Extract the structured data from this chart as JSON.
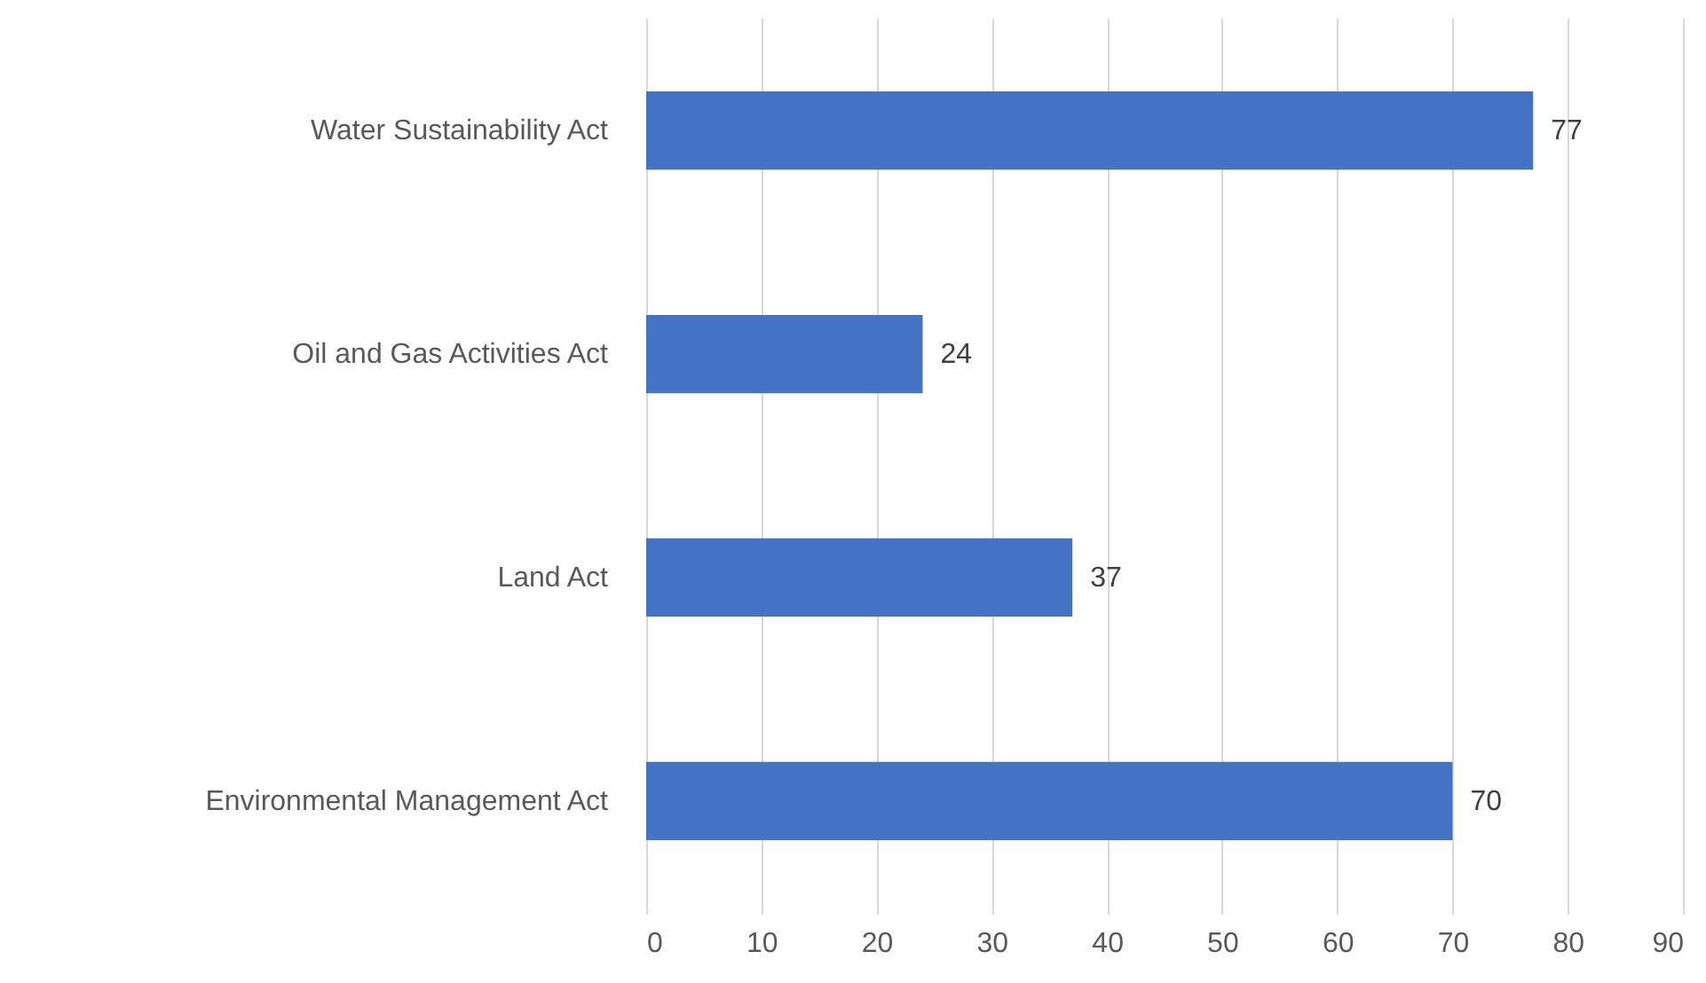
{
  "chart_data": {
    "type": "bar",
    "orientation": "horizontal",
    "categories": [
      "Water Sustainability Act",
      "Oil and Gas Activities Act",
      "Land Act",
      "Environmental Management Act"
    ],
    "values": [
      77,
      24,
      37,
      70
    ],
    "color": "#4472c4",
    "xlim": [
      0,
      90
    ],
    "xticks": [
      0,
      10,
      20,
      30,
      40,
      50,
      60,
      70,
      80,
      90
    ],
    "grid": "x",
    "data_labels": true
  }
}
